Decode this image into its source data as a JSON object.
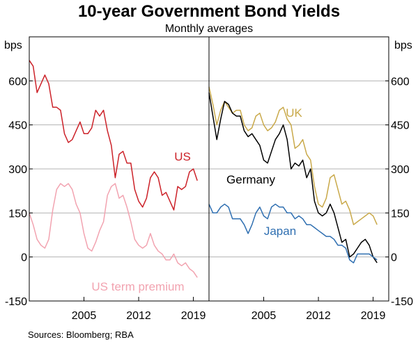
{
  "title": "10-year Government Bond Yields",
  "subtitle": "Monthly averages",
  "source": "Sources: Bloomberg; RBA",
  "chart_data": [
    {
      "type": "line",
      "panel": "left",
      "ylabel": "bps",
      "ylim": [
        -150,
        750
      ],
      "yticks": [
        -150,
        0,
        150,
        300,
        450,
        600
      ],
      "xlim": [
        1998,
        2021
      ],
      "xticks": [
        2005,
        2012,
        2019
      ],
      "grid": true,
      "series": [
        {
          "name": "US",
          "color": "#cc2229",
          "x": [
            1998.0,
            1998.5,
            1999.0,
            1999.5,
            2000.0,
            2000.5,
            2001.0,
            2001.5,
            2002.0,
            2002.5,
            2003.0,
            2003.5,
            2004.0,
            2004.5,
            2005.0,
            2005.5,
            2006.0,
            2006.5,
            2007.0,
            2007.5,
            2008.0,
            2008.5,
            2009.0,
            2009.5,
            2010.0,
            2010.5,
            2011.0,
            2011.5,
            2012.0,
            2012.5,
            2013.0,
            2013.5,
            2014.0,
            2014.5,
            2015.0,
            2015.5,
            2016.0,
            2016.5,
            2017.0,
            2017.5,
            2018.0,
            2018.5,
            2019.0,
            2019.5
          ],
          "values": [
            670,
            650,
            560,
            590,
            620,
            590,
            510,
            510,
            500,
            420,
            390,
            400,
            430,
            460,
            420,
            420,
            440,
            500,
            480,
            500,
            430,
            380,
            270,
            350,
            360,
            320,
            320,
            230,
            190,
            170,
            200,
            270,
            290,
            270,
            210,
            220,
            190,
            160,
            240,
            230,
            240,
            290,
            300,
            260
          ]
        },
        {
          "name": "US term premium",
          "color": "#f2a3b0",
          "x": [
            1998.0,
            1998.5,
            1999.0,
            1999.5,
            2000.0,
            2000.5,
            2001.0,
            2001.5,
            2002.0,
            2002.5,
            2003.0,
            2003.5,
            2004.0,
            2004.5,
            2005.0,
            2005.5,
            2006.0,
            2006.5,
            2007.0,
            2007.5,
            2008.0,
            2008.5,
            2009.0,
            2009.5,
            2010.0,
            2010.5,
            2011.0,
            2011.5,
            2012.0,
            2012.5,
            2013.0,
            2013.5,
            2014.0,
            2014.5,
            2015.0,
            2015.5,
            2016.0,
            2016.5,
            2017.0,
            2017.5,
            2018.0,
            2018.5,
            2019.0,
            2019.5
          ],
          "values": [
            150,
            110,
            60,
            40,
            30,
            60,
            160,
            230,
            250,
            240,
            250,
            230,
            180,
            150,
            80,
            30,
            20,
            50,
            90,
            120,
            210,
            240,
            250,
            200,
            210,
            170,
            120,
            60,
            40,
            30,
            40,
            80,
            40,
            20,
            10,
            -10,
            -10,
            10,
            -20,
            -30,
            -20,
            -40,
            -50,
            -70
          ]
        }
      ]
    },
    {
      "type": "line",
      "panel": "right",
      "ylabel": "bps",
      "ylim": [
        -150,
        750
      ],
      "yticks": [
        -150,
        0,
        150,
        300,
        450,
        600
      ],
      "xlim": [
        1998,
        2021
      ],
      "xticks": [
        2005,
        2012,
        2019
      ],
      "grid": true,
      "series": [
        {
          "name": "UK",
          "color": "#c9a94a",
          "x": [
            1998.0,
            1998.5,
            1999.0,
            1999.5,
            2000.0,
            2000.5,
            2001.0,
            2001.5,
            2002.0,
            2002.5,
            2003.0,
            2003.5,
            2004.0,
            2004.5,
            2005.0,
            2005.5,
            2006.0,
            2006.5,
            2007.0,
            2007.5,
            2008.0,
            2008.5,
            2009.0,
            2009.5,
            2010.0,
            2010.5,
            2011.0,
            2011.5,
            2012.0,
            2012.5,
            2013.0,
            2013.5,
            2014.0,
            2014.5,
            2015.0,
            2015.5,
            2016.0,
            2016.5,
            2017.0,
            2017.5,
            2018.0,
            2018.5,
            2019.0,
            2019.5
          ],
          "values": [
            580,
            520,
            450,
            500,
            530,
            510,
            490,
            500,
            500,
            450,
            430,
            440,
            480,
            490,
            450,
            430,
            440,
            460,
            500,
            510,
            470,
            450,
            370,
            380,
            400,
            350,
            330,
            240,
            180,
            170,
            200,
            270,
            280,
            230,
            180,
            190,
            160,
            110,
            120,
            130,
            140,
            150,
            140,
            110
          ]
        },
        {
          "name": "Germany",
          "color": "#000000",
          "x": [
            1998.0,
            1998.5,
            1999.0,
            1999.5,
            2000.0,
            2000.5,
            2001.0,
            2001.5,
            2002.0,
            2002.5,
            2003.0,
            2003.5,
            2004.0,
            2004.5,
            2005.0,
            2005.5,
            2006.0,
            2006.5,
            2007.0,
            2007.5,
            2008.0,
            2008.5,
            2009.0,
            2009.5,
            2010.0,
            2010.5,
            2011.0,
            2011.5,
            2012.0,
            2012.5,
            2013.0,
            2013.5,
            2014.0,
            2014.5,
            2015.0,
            2015.5,
            2016.0,
            2016.5,
            2017.0,
            2017.5,
            2018.0,
            2018.5,
            2019.0,
            2019.5
          ],
          "values": [
            560,
            480,
            400,
            470,
            530,
            520,
            490,
            480,
            480,
            430,
            410,
            420,
            400,
            380,
            330,
            320,
            360,
            400,
            420,
            450,
            400,
            300,
            320,
            310,
            330,
            270,
            300,
            190,
            150,
            140,
            150,
            180,
            150,
            100,
            50,
            60,
            0,
            10,
            30,
            50,
            60,
            40,
            0,
            -20
          ]
        },
        {
          "name": "Japan",
          "color": "#2f6fb1",
          "x": [
            1998.0,
            1998.5,
            1999.0,
            1999.5,
            2000.0,
            2000.5,
            2001.0,
            2001.5,
            2002.0,
            2002.5,
            2003.0,
            2003.5,
            2004.0,
            2004.5,
            2005.0,
            2005.5,
            2006.0,
            2006.5,
            2007.0,
            2007.5,
            2008.0,
            2008.5,
            2009.0,
            2009.5,
            2010.0,
            2010.5,
            2011.0,
            2011.5,
            2012.0,
            2012.5,
            2013.0,
            2013.5,
            2014.0,
            2014.5,
            2015.0,
            2015.5,
            2016.0,
            2016.5,
            2017.0,
            2017.5,
            2018.0,
            2018.5,
            2019.0,
            2019.5
          ],
          "values": [
            180,
            150,
            150,
            170,
            180,
            170,
            130,
            130,
            130,
            110,
            80,
            110,
            150,
            170,
            140,
            130,
            170,
            180,
            170,
            170,
            150,
            150,
            130,
            140,
            130,
            110,
            110,
            100,
            90,
            80,
            70,
            70,
            60,
            40,
            40,
            30,
            -10,
            -20,
            10,
            10,
            10,
            10,
            0,
            -10
          ]
        }
      ]
    }
  ]
}
